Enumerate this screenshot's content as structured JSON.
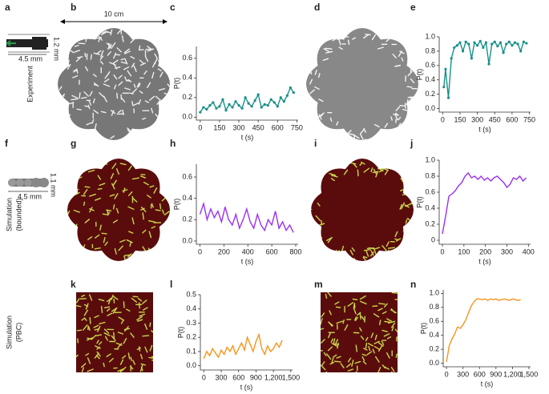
{
  "panel_labels": [
    "a",
    "b",
    "c",
    "d",
    "e",
    "f",
    "g",
    "h",
    "i",
    "j",
    "k",
    "l",
    "m",
    "n"
  ],
  "annotations": {
    "scale_bar": "10 cm",
    "exp_width": "1.2 mm",
    "exp_length": "4.5 mm",
    "sim_width": "1.1 mm",
    "sim_length": "4.5 mm"
  },
  "row_labels": [
    [
      "Experiment"
    ],
    [
      "Simulation",
      "(bounded)"
    ],
    [
      "Simulation",
      "(PBC)"
    ]
  ],
  "chart_data": [
    {
      "type": "line",
      "xlabel": "t (s)",
      "ylabel": "P(t)",
      "color": "#1a9088",
      "markers": true,
      "x": [
        0,
        25,
        50,
        75,
        100,
        125,
        150,
        175,
        200,
        225,
        250,
        275,
        300,
        325,
        350,
        375,
        400,
        425,
        450,
        475,
        500,
        525,
        550,
        575,
        600,
        625,
        650,
        675,
        700,
        725
      ],
      "values": [
        0.05,
        0.1,
        0.08,
        0.12,
        0.15,
        0.09,
        0.11,
        0.18,
        0.07,
        0.13,
        0.1,
        0.16,
        0.12,
        0.09,
        0.2,
        0.14,
        0.11,
        0.17,
        0.23,
        0.1,
        0.13,
        0.12,
        0.18,
        0.15,
        0.11,
        0.2,
        0.16,
        0.22,
        0.3,
        0.25
      ],
      "xlim": [
        -30,
        760
      ],
      "ylim": [
        -0.03,
        0.72
      ],
      "xticks": [
        0,
        150,
        300,
        450,
        600,
        750
      ],
      "yticks": [
        {
          "value": 0,
          "label": "0.0"
        },
        0.2,
        0.4,
        0.6
      ]
    },
    {
      "type": "line",
      "xlabel": "t (s)",
      "ylabel": "P(t)",
      "color": "#1a9088",
      "markers": true,
      "x": [
        10,
        25,
        50,
        75,
        100,
        125,
        150,
        175,
        200,
        225,
        250,
        275,
        300,
        325,
        350,
        375,
        400,
        425,
        450,
        475,
        500,
        525,
        550,
        575,
        600,
        625,
        650,
        675,
        700,
        725
      ],
      "values": [
        0.3,
        0.55,
        0.15,
        0.7,
        0.85,
        0.88,
        0.92,
        0.8,
        0.93,
        0.9,
        0.7,
        0.92,
        0.88,
        0.94,
        0.85,
        0.92,
        0.62,
        0.9,
        0.93,
        0.87,
        0.92,
        0.78,
        0.9,
        0.93,
        0.88,
        0.92,
        0.9,
        0.8,
        0.93,
        0.91
      ],
      "xlim": [
        -30,
        760
      ],
      "ylim": [
        -0.05,
        1.0
      ],
      "xticks": [
        0,
        150,
        300,
        450,
        600,
        750
      ],
      "yticks": [
        {
          "value": 0,
          "label": "0.0"
        },
        0.2,
        0.4,
        0.6,
        0.8,
        {
          "value": 1,
          "label": "1.0"
        }
      ]
    },
    {
      "type": "line",
      "xlabel": "t (s)",
      "ylabel": "P(t)",
      "color": "#9b30f0",
      "markers": false,
      "x": [
        0,
        30,
        60,
        90,
        120,
        150,
        180,
        210,
        240,
        270,
        300,
        330,
        360,
        390,
        420,
        450,
        480,
        510,
        540,
        570,
        600,
        630,
        660,
        690,
        720,
        750,
        780
      ],
      "values": [
        0.25,
        0.35,
        0.2,
        0.3,
        0.22,
        0.28,
        0.18,
        0.32,
        0.2,
        0.15,
        0.25,
        0.12,
        0.2,
        0.3,
        0.18,
        0.12,
        0.25,
        0.15,
        0.1,
        0.2,
        0.15,
        0.28,
        0.12,
        0.18,
        0.1,
        0.15,
        0.08
      ],
      "xlim": [
        -30,
        820
      ],
      "ylim": [
        -0.03,
        0.72
      ],
      "xticks": [
        0,
        200,
        400,
        600,
        800
      ],
      "yticks": [
        {
          "value": 0,
          "label": "0.0"
        },
        0.2,
        0.4,
        0.6
      ]
    },
    {
      "type": "line",
      "xlabel": "t (s)",
      "ylabel": "P(t)",
      "color": "#9b30f0",
      "markers": false,
      "x": [
        0,
        15,
        30,
        45,
        60,
        75,
        90,
        105,
        120,
        135,
        150,
        165,
        180,
        195,
        210,
        225,
        240,
        255,
        270,
        285,
        300,
        315,
        330,
        345,
        360,
        375,
        390
      ],
      "values": [
        0.08,
        0.3,
        0.55,
        0.58,
        0.62,
        0.68,
        0.72,
        0.8,
        0.84,
        0.78,
        0.8,
        0.76,
        0.8,
        0.75,
        0.78,
        0.74,
        0.78,
        0.8,
        0.76,
        0.72,
        0.66,
        0.7,
        0.78,
        0.76,
        0.8,
        0.74,
        0.78
      ],
      "xlim": [
        -15,
        410
      ],
      "ylim": [
        -0.05,
        1.0
      ],
      "xticks": [
        0,
        100,
        200,
        300,
        400
      ],
      "yticks": [
        0,
        0.2,
        0.4,
        0.6,
        0.8,
        {
          "value": 1,
          "label": "1.0"
        }
      ]
    },
    {
      "type": "line",
      "xlabel": "t (s)",
      "ylabel": "P(t)",
      "color": "#f7941d",
      "markers": false,
      "x": [
        0,
        50,
        100,
        150,
        200,
        250,
        300,
        350,
        400,
        450,
        500,
        550,
        600,
        650,
        700,
        750,
        800,
        850,
        900,
        950,
        1000,
        1050,
        1100,
        1150,
        1200,
        1250,
        1300,
        1350
      ],
      "values": [
        0.05,
        0.1,
        0.07,
        0.12,
        0.09,
        0.06,
        0.11,
        0.08,
        0.13,
        0.1,
        0.14,
        0.08,
        0.12,
        0.16,
        0.11,
        0.2,
        0.15,
        0.1,
        0.17,
        0.22,
        0.12,
        0.08,
        0.14,
        0.1,
        0.12,
        0.16,
        0.13,
        0.18
      ],
      "xlim": [
        -60,
        1530
      ],
      "ylim": [
        -0.03,
        0.5
      ],
      "xticks": [
        0,
        300,
        600,
        900,
        {
          "value": 1200,
          "label": "1,200"
        },
        {
          "value": 1500,
          "label": "1,500"
        }
      ],
      "yticks": [
        {
          "value": 0,
          "label": "0.0"
        },
        0.1,
        0.2,
        0.3,
        0.4,
        0.5
      ]
    },
    {
      "type": "line",
      "xlabel": "t (s)",
      "ylabel": "P(t)",
      "color": "#f7941d",
      "markers": false,
      "x": [
        0,
        50,
        100,
        150,
        200,
        250,
        300,
        350,
        400,
        450,
        500,
        550,
        600,
        650,
        700,
        750,
        800,
        850,
        900,
        950,
        1000,
        1050,
        1100,
        1150,
        1200,
        1250,
        1300,
        1350
      ],
      "values": [
        0.02,
        0.25,
        0.35,
        0.42,
        0.52,
        0.5,
        0.55,
        0.62,
        0.72,
        0.82,
        0.88,
        0.92,
        0.92,
        0.91,
        0.92,
        0.9,
        0.92,
        0.91,
        0.92,
        0.9,
        0.91,
        0.92,
        0.91,
        0.9,
        0.92,
        0.91,
        0.9,
        0.91
      ],
      "xlim": [
        -60,
        1530
      ],
      "ylim": [
        -0.05,
        1.05
      ],
      "xticks": [
        0,
        300,
        600,
        900,
        {
          "value": 1200,
          "label": "1,200"
        },
        {
          "value": 1500,
          "label": "1,500"
        }
      ],
      "yticks": [
        {
          "value": 0,
          "label": "0.0"
        },
        0.2,
        0.4,
        0.6,
        0.8,
        {
          "value": 1,
          "label": "1.0"
        }
      ]
    }
  ]
}
